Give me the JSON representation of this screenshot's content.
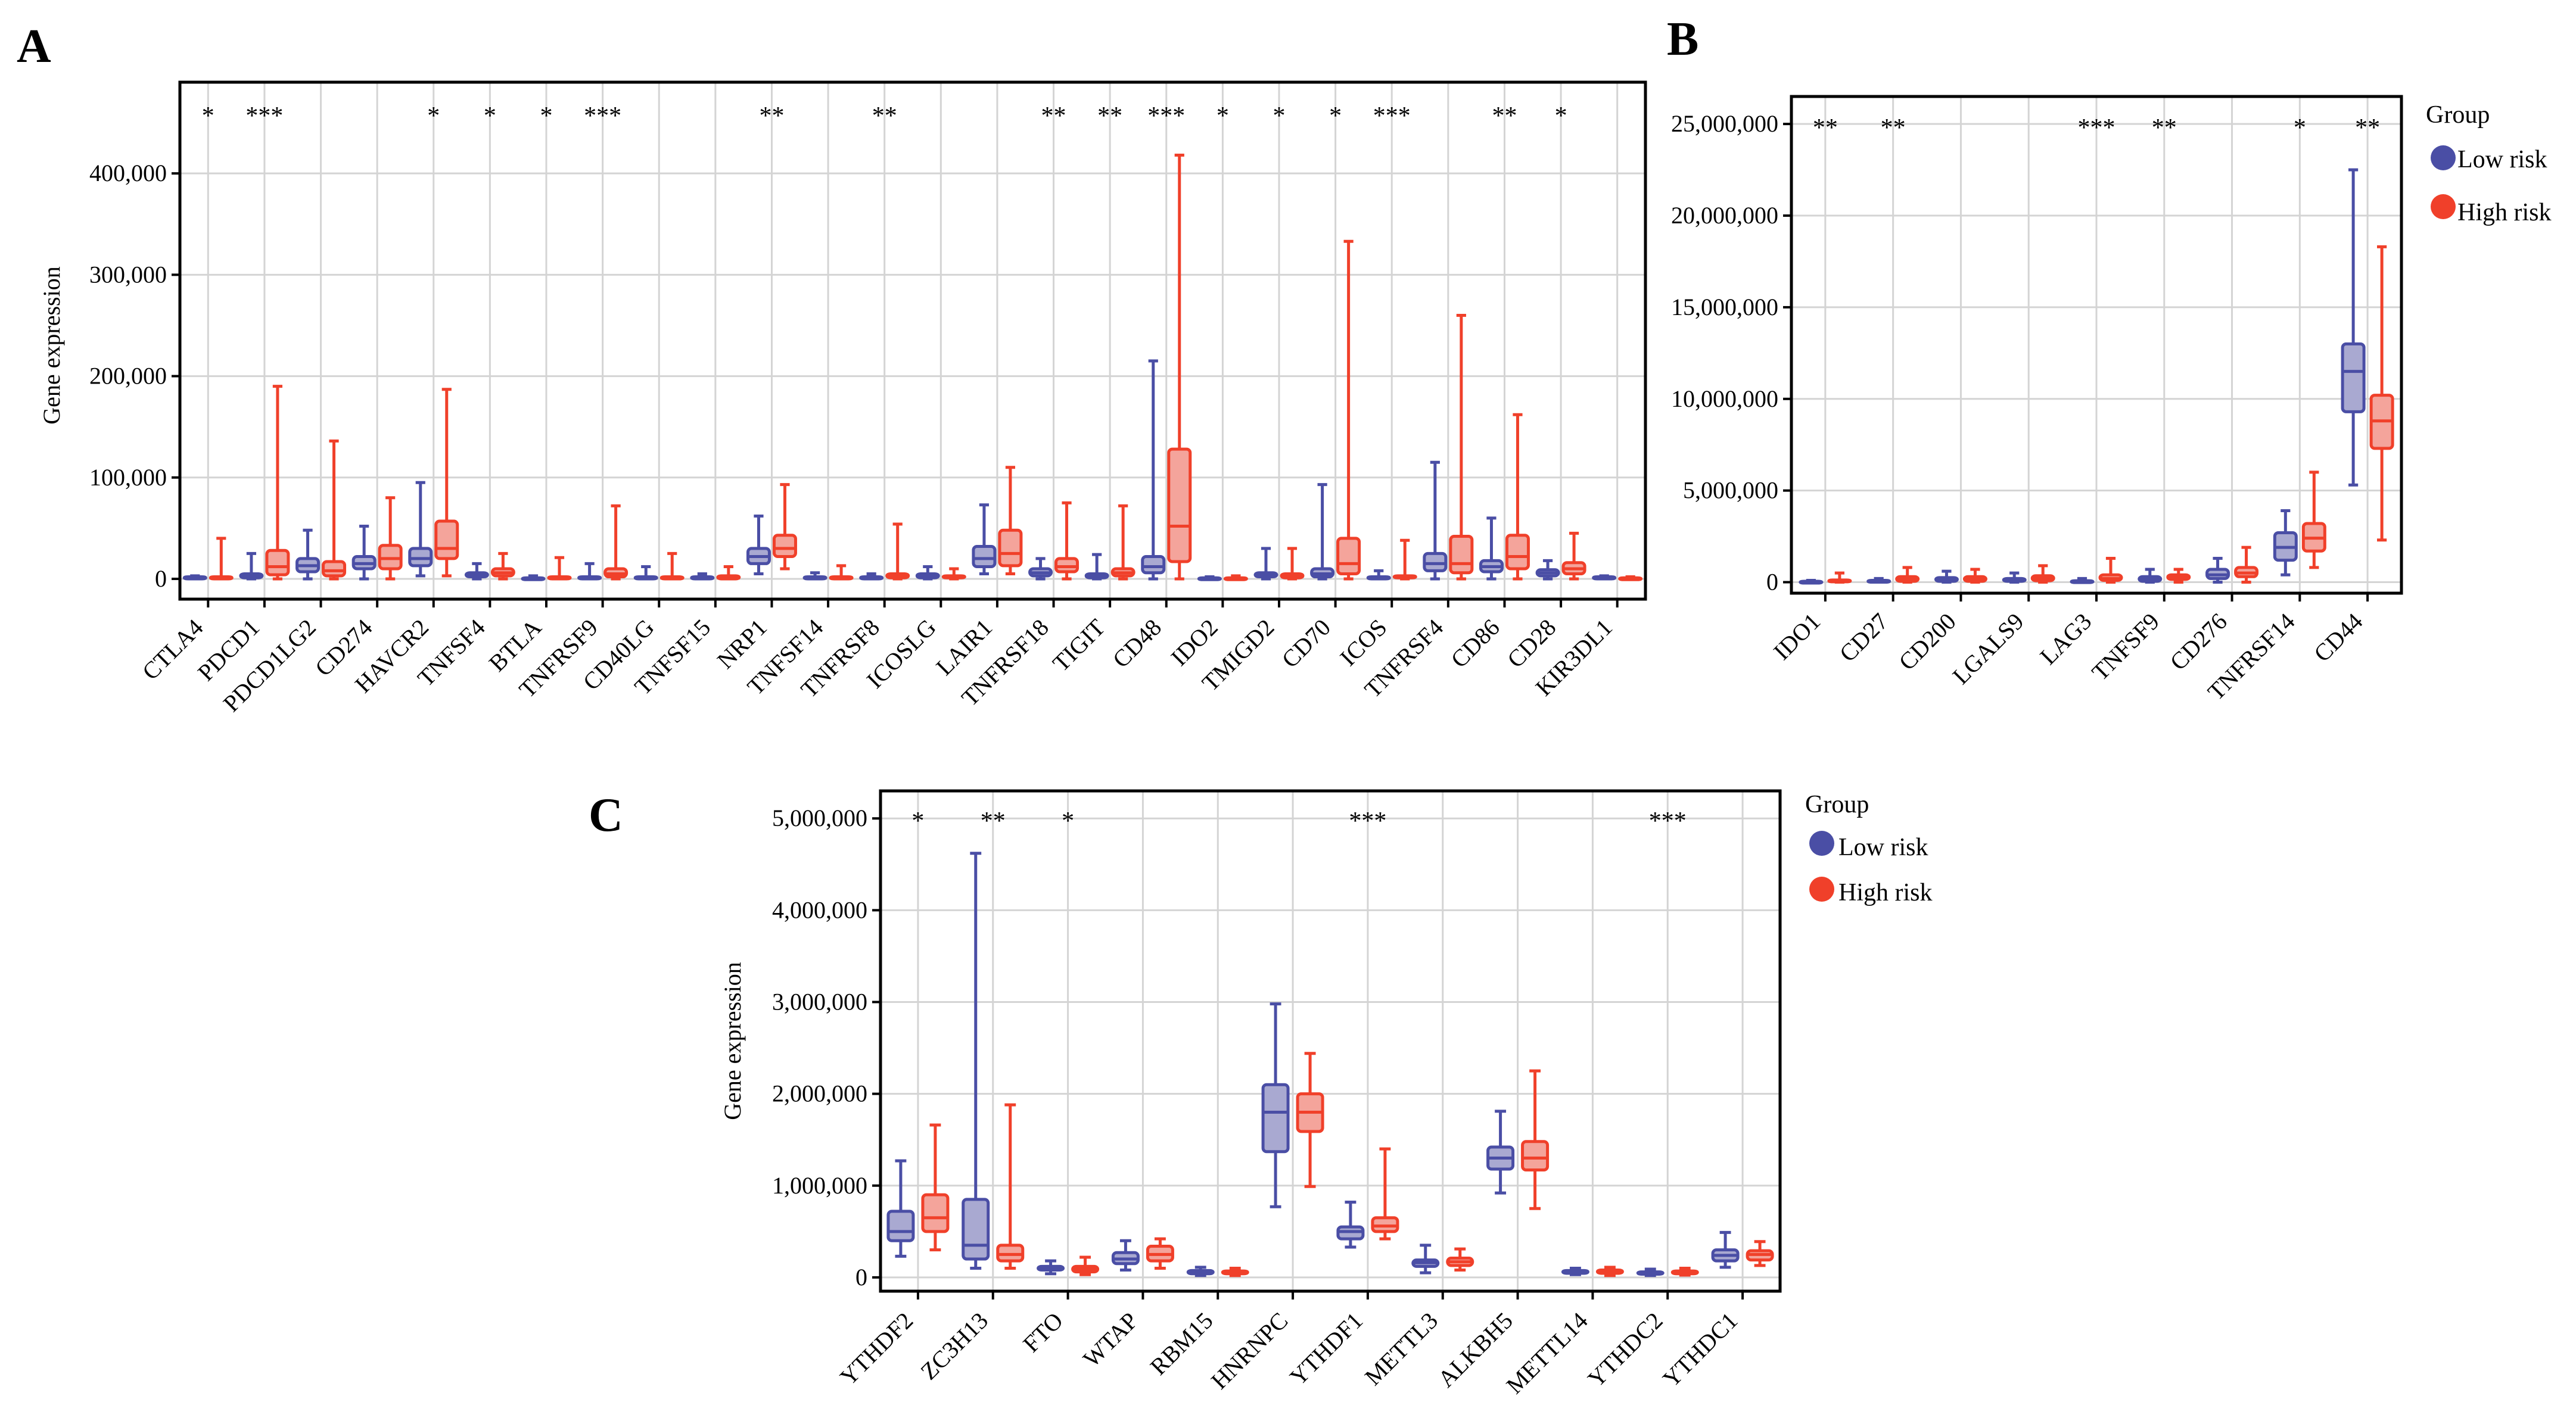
{
  "colors": {
    "low": "#4a4ea5",
    "high": "#f0402a",
    "low_fill": "#a9a9d1",
    "high_fill": "#f4a49b",
    "grid": "#d4d4d4"
  },
  "legend": {
    "title": "Group",
    "low": "Low risk",
    "high": "High risk"
  },
  "chart_data": [
    {
      "panel": "A",
      "type": "boxplot",
      "ylabel": "Gene expression",
      "ylim": [
        -20000,
        490000
      ],
      "yticks": [
        0,
        100000,
        200000,
        300000,
        400000
      ],
      "ytick_labels": [
        "0",
        "100,000",
        "200,000",
        "300,000",
        "400,000"
      ],
      "categories": [
        "CTLA4",
        "PDCD1",
        "PDCD1LG2",
        "CD274",
        "HAVCR2",
        "TNFSF4",
        "BTLA",
        "TNFRSF9",
        "CD40LG",
        "TNFSF15",
        "NRP1",
        "TNFSF14",
        "TNFRSF8",
        "ICOSLG",
        "LAIR1",
        "TNFRSF18",
        "TIGIT",
        "CD48",
        "IDO2",
        "TMIGD2",
        "CD70",
        "ICOS",
        "TNFRSF4",
        "CD86",
        "CD28",
        "KIR3DL1"
      ],
      "significance": [
        "*",
        "***",
        "",
        "",
        "*",
        "*",
        "*",
        "***",
        "",
        "",
        "**",
        "",
        "**",
        "",
        "",
        "**",
        "**",
        "***",
        "*",
        "*",
        "*",
        "***",
        "",
        "**",
        "*",
        ""
      ],
      "series": [
        {
          "name": "Low risk",
          "boxes": [
            [
              0,
              0,
              1000,
              2000,
              3000
            ],
            [
              0,
              1000,
              3000,
              5000,
              25000
            ],
            [
              0,
              7000,
              13000,
              20000,
              48000
            ],
            [
              0,
              10000,
              15000,
              22000,
              52000
            ],
            [
              3000,
              13000,
              20000,
              30000,
              95000
            ],
            [
              0,
              2000,
              4000,
              6000,
              15000
            ],
            [
              0,
              0,
              500,
              1000,
              3000
            ],
            [
              0,
              0,
              1000,
              2000,
              15000
            ],
            [
              0,
              0,
              1000,
              2000,
              12000
            ],
            [
              0,
              0,
              1000,
              2000,
              5000
            ],
            [
              5000,
              15000,
              22000,
              30000,
              62000
            ],
            [
              0,
              0,
              1000,
              2000,
              6000
            ],
            [
              0,
              0,
              1000,
              2000,
              5000
            ],
            [
              0,
              1000,
              3000,
              5000,
              12000
            ],
            [
              5000,
              12000,
              20000,
              32000,
              73000
            ],
            [
              0,
              3000,
              6000,
              10000,
              20000
            ],
            [
              0,
              1000,
              3000,
              5000,
              24000
            ],
            [
              0,
              6000,
              12000,
              22000,
              215000
            ],
            [
              0,
              0,
              500,
              1000,
              2000
            ],
            [
              0,
              2000,
              4000,
              6000,
              30000
            ],
            [
              0,
              2000,
              5000,
              10000,
              93000
            ],
            [
              0,
              0,
              1000,
              2000,
              8000
            ],
            [
              0,
              8000,
              15000,
              25000,
              115000
            ],
            [
              0,
              7000,
              12000,
              18000,
              60000
            ],
            [
              0,
              3000,
              6000,
              9000,
              18000
            ],
            [
              0,
              0,
              1000,
              2000,
              3000
            ]
          ]
        },
        {
          "name": "High risk",
          "boxes": [
            [
              0,
              0,
              1000,
              2000,
              40000
            ],
            [
              0,
              4000,
              12000,
              28000,
              190000
            ],
            [
              0,
              3000,
              8000,
              17000,
              136000
            ],
            [
              0,
              10000,
              20000,
              33000,
              80000
            ],
            [
              3000,
              20000,
              30000,
              57000,
              187000
            ],
            [
              0,
              3000,
              6000,
              10000,
              25000
            ],
            [
              0,
              0,
              1000,
              2000,
              21000
            ],
            [
              0,
              2000,
              5000,
              10000,
              72000
            ],
            [
              0,
              0,
              1000,
              2000,
              25000
            ],
            [
              0,
              0,
              1000,
              3000,
              12000
            ],
            [
              10000,
              22000,
              30000,
              43000,
              93000
            ],
            [
              0,
              0,
              1000,
              2000,
              13000
            ],
            [
              0,
              1000,
              3000,
              5000,
              54000
            ],
            [
              0,
              1000,
              2000,
              3000,
              10000
            ],
            [
              5000,
              13000,
              25000,
              48000,
              110000
            ],
            [
              0,
              7000,
              12000,
              20000,
              75000
            ],
            [
              0,
              3000,
              6000,
              10000,
              72000
            ],
            [
              0,
              17000,
              52000,
              128000,
              418000
            ],
            [
              0,
              0,
              500,
              1000,
              3000
            ],
            [
              0,
              1000,
              3000,
              5000,
              30000
            ],
            [
              0,
              5000,
              15000,
              40000,
              333000
            ],
            [
              0,
              1000,
              2000,
              3000,
              38000
            ],
            [
              0,
              6000,
              15000,
              42000,
              260000
            ],
            [
              0,
              10000,
              22000,
              43000,
              162000
            ],
            [
              0,
              5000,
              10000,
              16000,
              45000
            ],
            [
              0,
              0,
              500,
              1000,
              2000
            ]
          ]
        }
      ]
    },
    {
      "panel": "B",
      "type": "boxplot",
      "ylabel": "",
      "ylim": [
        -600000,
        26500000
      ],
      "yticks": [
        0,
        5000000,
        10000000,
        15000000,
        20000000,
        25000000
      ],
      "ytick_labels": [
        "0",
        "5,000,000",
        "10,000,000",
        "15,000,000",
        "20,000,000",
        "25,000,000"
      ],
      "categories": [
        "IDO1",
        "CD27",
        "CD200",
        "LGALS9",
        "LAG3",
        "TNFSF9",
        "CD276",
        "TNFRSF14",
        "CD44"
      ],
      "significance": [
        "**",
        "**",
        "",
        "",
        "***",
        "**",
        "",
        "*",
        "**"
      ],
      "series": [
        {
          "name": "Low risk",
          "boxes": [
            [
              0,
              0,
              20000,
              50000,
              100000
            ],
            [
              0,
              10000,
              50000,
              100000,
              200000
            ],
            [
              0,
              50000,
              150000,
              250000,
              600000
            ],
            [
              0,
              50000,
              100000,
              200000,
              500000
            ],
            [
              0,
              0,
              30000,
              80000,
              200000
            ],
            [
              0,
              50000,
              150000,
              300000,
              700000
            ],
            [
              0,
              200000,
              400000,
              700000,
              1300000
            ],
            [
              400000,
              1200000,
              1900000,
              2700000,
              3900000
            ],
            [
              5300000,
              9300000,
              11500000,
              13000000,
              22500000
            ]
          ]
        },
        {
          "name": "High risk",
          "boxes": [
            [
              0,
              20000,
              60000,
              120000,
              500000
            ],
            [
              0,
              50000,
              150000,
              300000,
              800000
            ],
            [
              0,
              50000,
              150000,
              300000,
              700000
            ],
            [
              0,
              80000,
              200000,
              350000,
              900000
            ],
            [
              0,
              100000,
              200000,
              400000,
              1300000
            ],
            [
              0,
              150000,
              250000,
              400000,
              700000
            ],
            [
              0,
              300000,
              500000,
              800000,
              1900000
            ],
            [
              800000,
              1700000,
              2400000,
              3200000,
              6000000
            ],
            [
              2300000,
              7300000,
              8800000,
              10200000,
              18300000
            ]
          ]
        }
      ]
    },
    {
      "panel": "C",
      "type": "boxplot",
      "ylabel": "Gene expression",
      "ylim": [
        -150000,
        5300000
      ],
      "yticks": [
        0,
        1000000,
        2000000,
        3000000,
        4000000,
        5000000
      ],
      "ytick_labels": [
        "0",
        "1,000,000",
        "2,000,000",
        "3,000,000",
        "4,000,000",
        "5,000,000"
      ],
      "categories": [
        "YTHDF2",
        "ZC3H13",
        "FTO",
        "WTAP",
        "RBM15",
        "HNRNPC",
        "YTHDF1",
        "METTL3",
        "ALKBH5",
        "METTL14",
        "YTHDC2",
        "YTHDC1"
      ],
      "significance": [
        "*",
        "**",
        "*",
        "",
        "",
        "",
        "***",
        "",
        "",
        "",
        "***",
        ""
      ],
      "series": [
        {
          "name": "Low risk",
          "boxes": [
            [
              230000,
              400000,
              500000,
              720000,
              1270000
            ],
            [
              100000,
              200000,
              350000,
              850000,
              4620000
            ],
            [
              40000,
              80000,
              100000,
              120000,
              180000
            ],
            [
              80000,
              150000,
              200000,
              270000,
              400000
            ],
            [
              20000,
              40000,
              55000,
              75000,
              110000
            ],
            [
              770000,
              1370000,
              1800000,
              2100000,
              2980000
            ],
            [
              330000,
              420000,
              500000,
              550000,
              820000
            ],
            [
              50000,
              120000,
              160000,
              190000,
              350000
            ],
            [
              920000,
              1180000,
              1300000,
              1420000,
              1810000
            ],
            [
              30000,
              45000,
              60000,
              75000,
              100000
            ],
            [
              20000,
              35000,
              50000,
              60000,
              90000
            ],
            [
              110000,
              180000,
              240000,
              300000,
              490000
            ]
          ]
        },
        {
          "name": "High risk",
          "boxes": [
            [
              300000,
              500000,
              650000,
              900000,
              1660000
            ],
            [
              100000,
              180000,
              250000,
              350000,
              1880000
            ],
            [
              30000,
              60000,
              90000,
              120000,
              220000
            ],
            [
              100000,
              180000,
              250000,
              340000,
              420000
            ],
            [
              20000,
              40000,
              60000,
              70000,
              100000
            ],
            [
              990000,
              1590000,
              1800000,
              2000000,
              2440000
            ],
            [
              420000,
              500000,
              560000,
              650000,
              1400000
            ],
            [
              80000,
              130000,
              170000,
              210000,
              310000
            ],
            [
              750000,
              1170000,
              1300000,
              1480000,
              2250000
            ],
            [
              20000,
              45000,
              60000,
              80000,
              110000
            ],
            [
              25000,
              40000,
              55000,
              70000,
              100000
            ],
            [
              130000,
              190000,
              250000,
              290000,
              390000
            ]
          ]
        }
      ]
    }
  ]
}
